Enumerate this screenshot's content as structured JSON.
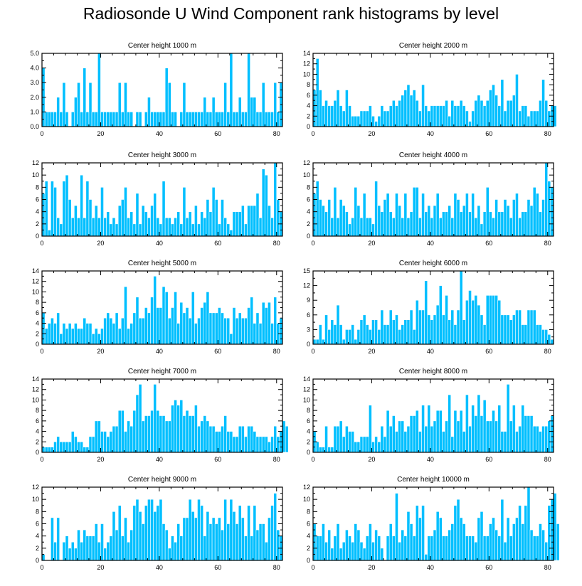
{
  "title": "Radiosonde U Wind Component rank histograms by level",
  "colors": {
    "bar": "#00BFFF",
    "bar_edge": "#ffffff",
    "axis": "#000000"
  },
  "chart_data": [
    {
      "type": "bar",
      "title": "Center height 1000 m",
      "xlim": [
        0,
        82
      ],
      "ylim": [
        0,
        5
      ],
      "yticks": [
        0,
        1,
        2,
        3,
        4,
        5
      ],
      "yticklabels": [
        "0.0",
        "1.0",
        "2.0",
        "3.0",
        "4.0",
        "5.0"
      ],
      "xticks": [
        0,
        20,
        40,
        60,
        80
      ],
      "values": [
        4,
        1,
        1,
        1,
        1,
        2,
        1,
        3,
        1,
        0,
        1,
        2,
        3,
        1,
        4,
        1,
        3,
        1,
        1,
        5,
        1,
        1,
        1,
        1,
        1,
        1,
        3,
        1,
        3,
        1,
        1,
        0,
        1,
        1,
        0,
        1,
        2,
        1,
        1,
        1,
        1,
        1,
        4,
        3,
        1,
        1,
        0,
        1,
        3,
        1,
        1,
        1,
        1,
        1,
        1,
        2,
        1,
        1,
        2,
        1,
        1,
        1,
        3,
        1,
        5,
        1,
        1,
        2,
        1,
        1,
        5,
        2,
        2,
        1,
        1,
        3,
        1,
        1,
        1,
        3,
        1,
        3
      ]
    },
    {
      "type": "bar",
      "title": "Center height 2000 m",
      "xlim": [
        0,
        82
      ],
      "ylim": [
        0,
        14
      ],
      "yticks": [
        0,
        2,
        4,
        6,
        8,
        10,
        12,
        14
      ],
      "yticklabels": [
        "0",
        "2",
        "4",
        "6",
        "8",
        "10",
        "12",
        "14"
      ],
      "xticks": [
        0,
        20,
        40,
        60,
        80
      ],
      "values": [
        7,
        13,
        7,
        4,
        5,
        4,
        4,
        5,
        7,
        4,
        3,
        7,
        4,
        2,
        2,
        2,
        3,
        3,
        3,
        4,
        2,
        1,
        2,
        4,
        3,
        3,
        4,
        5,
        4,
        5,
        6,
        7,
        8,
        6,
        7,
        5,
        3,
        8,
        4,
        3,
        4,
        4,
        4,
        4,
        4,
        5,
        2,
        5,
        4,
        4,
        5,
        4,
        3,
        1,
        3,
        5,
        6,
        5,
        4,
        5,
        7,
        8,
        6,
        4,
        9,
        3,
        5,
        5,
        6,
        10,
        3,
        4,
        4,
        2,
        3,
        3,
        3,
        5,
        9,
        5,
        3,
        4,
        4
      ]
    },
    {
      "type": "bar",
      "title": "Center height 3000 m",
      "xlim": [
        0,
        82
      ],
      "ylim": [
        0,
        12
      ],
      "yticks": [
        0,
        2,
        4,
        6,
        8,
        10,
        12
      ],
      "yticklabels": [
        "0",
        "2",
        "4",
        "6",
        "8",
        "10",
        "12"
      ],
      "xticks": [
        0,
        20,
        40,
        60,
        80
      ],
      "values": [
        7,
        9,
        1,
        9,
        8,
        3,
        2,
        9,
        10,
        6,
        3,
        5,
        3,
        10,
        3,
        9,
        6,
        3,
        5,
        3,
        8,
        3,
        4,
        2,
        3,
        2,
        5,
        6,
        8,
        3,
        4,
        2,
        7,
        2,
        5,
        4,
        3,
        5,
        7,
        3,
        2,
        9,
        3,
        3,
        2,
        3,
        4,
        2,
        8,
        3,
        4,
        2,
        5,
        2,
        4,
        3,
        6,
        4,
        8,
        6,
        2,
        6,
        3,
        2,
        1,
        4,
        4,
        4,
        5,
        2,
        5,
        5,
        5,
        7,
        3,
        11,
        10,
        5,
        3,
        12,
        6,
        4
      ]
    },
    {
      "type": "bar",
      "title": "Center height 4000 m",
      "xlim": [
        0,
        82
      ],
      "ylim": [
        0,
        12
      ],
      "yticks": [
        0,
        2,
        4,
        6,
        8,
        10,
        12
      ],
      "yticklabels": [
        "0",
        "2",
        "4",
        "6",
        "8",
        "10",
        "12"
      ],
      "xticks": [
        0,
        20,
        40,
        60,
        80
      ],
      "values": [
        7,
        9,
        6,
        5,
        4,
        6,
        3,
        8,
        3,
        6,
        5,
        4,
        2,
        3,
        8,
        5,
        3,
        7,
        3,
        3,
        2,
        9,
        5,
        4,
        6,
        7,
        4,
        3,
        7,
        5,
        3,
        7,
        3,
        4,
        8,
        8,
        3,
        7,
        4,
        5,
        3,
        5,
        7,
        3,
        4,
        4,
        5,
        3,
        7,
        6,
        4,
        5,
        7,
        4,
        7,
        3,
        5,
        2,
        4,
        8,
        4,
        3,
        6,
        4,
        4,
        6,
        5,
        3,
        6,
        7,
        3,
        4,
        4,
        6,
        5,
        8,
        7,
        4,
        6,
        12,
        9,
        8
      ]
    },
    {
      "type": "bar",
      "title": "Center height 5000 m",
      "xlim": [
        0,
        82
      ],
      "ylim": [
        0,
        14
      ],
      "yticks": [
        0,
        2,
        4,
        6,
        8,
        10,
        12,
        14
      ],
      "yticklabels": [
        "0",
        "2",
        "4",
        "6",
        "8",
        "10",
        "12",
        "14"
      ],
      "xticks": [
        0,
        20,
        40,
        60,
        80
      ],
      "values": [
        6,
        3,
        4,
        5,
        4,
        6,
        2,
        4,
        3,
        4,
        3,
        4,
        3,
        3,
        5,
        4,
        4,
        2,
        3,
        2,
        3,
        5,
        6,
        5,
        4,
        6,
        3,
        5,
        11,
        3,
        4,
        6,
        9,
        5,
        5,
        7,
        6,
        9,
        13,
        7,
        7,
        11,
        10,
        5,
        7,
        10,
        4,
        8,
        6,
        7,
        5,
        10,
        4,
        5,
        7,
        8,
        10,
        6,
        6,
        6,
        7,
        6,
        5,
        5,
        2,
        7,
        5,
        6,
        5,
        5,
        7,
        9,
        4,
        6,
        4,
        8,
        7,
        8,
        4,
        9,
        4,
        5
      ]
    },
    {
      "type": "bar",
      "title": "Center height 6000 m",
      "xlim": [
        0,
        82
      ],
      "ylim": [
        0,
        15
      ],
      "yticks": [
        0,
        3,
        6,
        9,
        12,
        15
      ],
      "yticklabels": [
        "0",
        "3",
        "6",
        "9",
        "12",
        "15"
      ],
      "xticks": [
        0,
        20,
        40,
        60,
        80
      ],
      "values": [
        1,
        1,
        4,
        1,
        6,
        3,
        5,
        4,
        8,
        4,
        1,
        3,
        3,
        4,
        1,
        3,
        5,
        6,
        4,
        3,
        5,
        5,
        3,
        7,
        4,
        4,
        7,
        5,
        6,
        3,
        4,
        5,
        5,
        7,
        3,
        9,
        7,
        7,
        13,
        6,
        5,
        6,
        8,
        12,
        6,
        10,
        5,
        7,
        4,
        7,
        15,
        5,
        9,
        11,
        9,
        10,
        8,
        6,
        4,
        10,
        10,
        10,
        10,
        9,
        6,
        6,
        6,
        5,
        6,
        7,
        7,
        4,
        4,
        7,
        7,
        7,
        4,
        4,
        3,
        3,
        2,
        1
      ]
    },
    {
      "type": "bar",
      "title": "Center height 7000 m",
      "xlim": [
        0,
        82
      ],
      "ylim": [
        0,
        14
      ],
      "yticks": [
        0,
        2,
        4,
        6,
        8,
        10,
        12,
        14
      ],
      "yticklabels": [
        "0",
        "2",
        "4",
        "6",
        "8",
        "10",
        "12",
        "14"
      ],
      "xticks": [
        0,
        20,
        40,
        60,
        80
      ],
      "values": [
        1,
        1,
        1,
        1,
        2,
        3,
        2,
        2,
        2,
        2,
        4,
        3,
        2,
        2,
        1,
        1,
        3,
        3,
        6,
        6,
        4,
        4,
        3,
        4,
        5,
        5,
        8,
        8,
        4,
        6,
        5,
        8,
        11,
        13,
        6,
        7,
        7,
        8,
        13,
        8,
        7,
        7,
        6,
        6,
        9,
        10,
        9,
        10,
        7,
        8,
        7,
        7,
        9,
        5,
        6,
        7,
        6,
        5,
        5,
        4,
        4,
        5,
        7,
        4,
        4,
        3,
        3,
        5,
        5,
        3,
        5,
        5,
        4,
        3,
        3,
        3,
        3,
        2,
        3,
        5,
        3,
        4,
        6,
        5
      ]
    },
    {
      "type": "bar",
      "title": "Center height 8000 m",
      "xlim": [
        0,
        82
      ],
      "ylim": [
        0,
        14
      ],
      "yticks": [
        0,
        2,
        4,
        6,
        8,
        10,
        12,
        14
      ],
      "yticklabels": [
        "0",
        "2",
        "4",
        "6",
        "8",
        "10",
        "12",
        "14"
      ],
      "xticks": [
        0,
        20,
        40,
        60,
        80
      ],
      "values": [
        4,
        2,
        1,
        1,
        5,
        1,
        1,
        5,
        5,
        6,
        3,
        5,
        4,
        4,
        2,
        2,
        3,
        3,
        3,
        9,
        2,
        3,
        2,
        5,
        3,
        8,
        5,
        7,
        4,
        6,
        6,
        4,
        5,
        7,
        7,
        8,
        4,
        9,
        5,
        9,
        5,
        6,
        8,
        8,
        4,
        6,
        11,
        3,
        8,
        6,
        8,
        4,
        11,
        5,
        9,
        7,
        11,
        7,
        10,
        6,
        6,
        8,
        6,
        9,
        4,
        4,
        13,
        6,
        9,
        4,
        5,
        9,
        7,
        7,
        7,
        5,
        5,
        4,
        5,
        5,
        6,
        7
      ]
    },
    {
      "type": "bar",
      "title": "Center height 9000 m",
      "xlim": [
        0,
        82
      ],
      "ylim": [
        0,
        12
      ],
      "yticks": [
        0,
        2,
        4,
        6,
        8,
        10,
        12
      ],
      "yticklabels": [
        "0",
        "2",
        "4",
        "6",
        "8",
        "10",
        "12"
      ],
      "xticks": [
        0,
        20,
        40,
        60,
        80
      ],
      "values": [
        1,
        0,
        0,
        7,
        3,
        7,
        0,
        3,
        4,
        2,
        3,
        2,
        5,
        3,
        5,
        4,
        4,
        4,
        6,
        3,
        6,
        2,
        3,
        4,
        8,
        5,
        9,
        4,
        7,
        3,
        5,
        9,
        10,
        8,
        6,
        9,
        10,
        10,
        8,
        9,
        10,
        6,
        5,
        2,
        4,
        3,
        6,
        4,
        7,
        7,
        10,
        8,
        7,
        10,
        9,
        4,
        8,
        6,
        7,
        6,
        7,
        5,
        10,
        6,
        10,
        8,
        6,
        9,
        7,
        4,
        9,
        4,
        9,
        5,
        6,
        6,
        3,
        7,
        9,
        11,
        5,
        4
      ]
    },
    {
      "type": "bar",
      "title": "Center height 10000 m",
      "xlim": [
        0,
        82
      ],
      "ylim": [
        0,
        12
      ],
      "yticks": [
        0,
        2,
        4,
        6,
        8,
        10,
        12
      ],
      "yticklabels": [
        "0",
        "2",
        "4",
        "6",
        "8",
        "10",
        "12"
      ],
      "xticks": [
        0,
        20,
        40,
        60,
        80
      ],
      "values": [
        6,
        4,
        4,
        6,
        3,
        5,
        2,
        4,
        6,
        2,
        3,
        5,
        4,
        3,
        6,
        5,
        3,
        2,
        4,
        6,
        3,
        5,
        4,
        2,
        0,
        4,
        6,
        4,
        11,
        3,
        5,
        4,
        8,
        6,
        4,
        9,
        7,
        9,
        1,
        4,
        4,
        5,
        8,
        7,
        4,
        4,
        5,
        6,
        9,
        10,
        7,
        6,
        4,
        4,
        4,
        3,
        7,
        8,
        4,
        4,
        6,
        7,
        5,
        4,
        10,
        3,
        7,
        4,
        6,
        7,
        9,
        6,
        9,
        12,
        5,
        4,
        4,
        6,
        5,
        3,
        9,
        10,
        11,
        6
      ]
    }
  ]
}
